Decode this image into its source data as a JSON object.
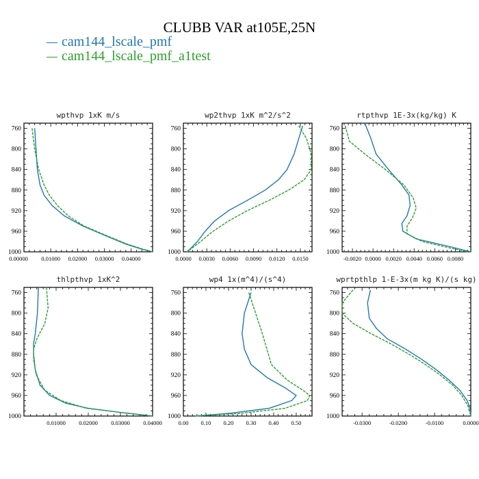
{
  "title": "CLUBB VAR at105E,25N",
  "colors": {
    "series1": "#1f77b4",
    "series2": "#2ca02c"
  },
  "legend": [
    {
      "name": "cam144_lscale_pmf",
      "color": "#1f77b4"
    },
    {
      "name": "cam144_lscale_pmf_a1test",
      "color": "#2ca02c"
    }
  ],
  "chart_data": [
    {
      "type": "line",
      "title": "wpthvp  1xK m/s",
      "xlim": [
        0,
        0.048
      ],
      "ylim": [
        1000,
        750
      ],
      "xticks": [
        0.01,
        0.02,
        0.03,
        0.04
      ],
      "xticklabels": [
        "0.01000",
        "0.02000",
        "0.03000",
        "0.04000"
      ],
      "xticks_labeled_origin": "0.00000",
      "yticks": [
        760,
        800,
        840,
        880,
        920,
        960,
        1000
      ],
      "yticklabels": [
        "760",
        "800",
        "840",
        "880",
        "920",
        "960",
        "1000"
      ],
      "series": [
        {
          "name": "cam144_lscale_pmf",
          "y": [
            760,
            800,
            840,
            870,
            890,
            910,
            930,
            950,
            970,
            985,
            995,
            1000
          ],
          "x": [
            0.004,
            0.0045,
            0.005,
            0.006,
            0.0075,
            0.0105,
            0.015,
            0.022,
            0.031,
            0.038,
            0.044,
            0.048
          ]
        },
        {
          "name": "cam144_lscale_pmf_a1test",
          "y": [
            760,
            800,
            840,
            870,
            890,
            910,
            930,
            950,
            970,
            985,
            995,
            1000
          ],
          "x": [
            0.003,
            0.004,
            0.0055,
            0.0075,
            0.0095,
            0.0125,
            0.0165,
            0.0225,
            0.0315,
            0.0385,
            0.0445,
            0.048
          ]
        }
      ]
    },
    {
      "type": "line",
      "title": "wp2thvp  1xK m^2/s^2",
      "xlim": [
        0,
        0.0165
      ],
      "ylim": [
        1000,
        750
      ],
      "xticks": [
        0,
        0.003,
        0.006,
        0.009,
        0.012,
        0.015
      ],
      "xticklabels": [
        "0.0000",
        "0.0030",
        "0.0060",
        "0.0090",
        "0.0120",
        "0.0150"
      ],
      "yticks": [
        760,
        800,
        840,
        880,
        920,
        960,
        1000
      ],
      "yticklabels": [
        "760",
        "800",
        "840",
        "880",
        "920",
        "960",
        "1000"
      ],
      "series": [
        {
          "name": "cam144_lscale_pmf",
          "y": [
            755,
            780,
            810,
            840,
            860,
            880,
            900,
            920,
            940,
            960,
            980,
            1000
          ],
          "x": [
            0.0153,
            0.0148,
            0.0142,
            0.0133,
            0.0122,
            0.0105,
            0.0082,
            0.0058,
            0.004,
            0.0028,
            0.0018,
            0.0005
          ]
        },
        {
          "name": "cam144_lscale_pmf_a1test",
          "y": [
            755,
            780,
            810,
            840,
            860,
            880,
            900,
            920,
            940,
            960,
            980,
            1000
          ],
          "x": [
            0.0148,
            0.0158,
            0.0164,
            0.0164,
            0.0155,
            0.0135,
            0.011,
            0.0082,
            0.0058,
            0.0038,
            0.0022,
            0.0005
          ]
        }
      ]
    },
    {
      "type": "line",
      "title": "rtpthvp  1E-3x(kg/kg) K",
      "xlim": [
        -0.003,
        0.0095
      ],
      "ylim": [
        1000,
        750
      ],
      "xticks": [
        -0.002,
        0,
        0.002,
        0.004,
        0.006,
        0.008
      ],
      "xticklabels": [
        "-0.0020",
        "0.0000",
        "0.0020",
        "0.0040",
        "0.0060",
        "0.0080"
      ],
      "yticks": [
        760,
        800,
        840,
        880,
        920,
        960,
        1000
      ],
      "yticklabels": [
        "760",
        "800",
        "840",
        "880",
        "920",
        "960",
        "1000"
      ],
      "series": [
        {
          "name": "cam144_lscale_pmf",
          "y": [
            750,
            780,
            810,
            840,
            870,
            890,
            910,
            930,
            945,
            960,
            975,
            990,
            1000
          ],
          "x": [
            -0.0008,
            -0.0002,
            0.0003,
            0.0015,
            0.0028,
            0.0035,
            0.0036,
            0.0033,
            0.0028,
            0.0029,
            0.0042,
            0.0075,
            0.0095
          ]
        },
        {
          "name": "cam144_lscale_pmf_a1test",
          "y": [
            755,
            785,
            810,
            840,
            870,
            895,
            915,
            935,
            950,
            965,
            980,
            995,
            1000
          ],
          "x": [
            -0.0027,
            -0.0023,
            -0.0008,
            0.0012,
            0.003,
            0.0039,
            0.0042,
            0.0038,
            0.0033,
            0.0033,
            0.0048,
            0.008,
            0.0092
          ]
        }
      ]
    },
    {
      "type": "line",
      "title": "thlpthvp  1xK^2",
      "xlim": [
        0,
        0.04
      ],
      "ylim": [
        1000,
        750
      ],
      "xticks": [
        0.01,
        0.02,
        0.03,
        0.04
      ],
      "xticklabels": [
        "0.01000",
        "0.02000",
        "0.03000",
        "0.04000"
      ],
      "yticks": [
        760,
        800,
        840,
        880,
        920,
        960,
        1000
      ],
      "yticklabels": [
        "760",
        "800",
        "840",
        "880",
        "920",
        "960",
        "1000"
      ],
      "series": [
        {
          "name": "cam144_lscale_pmf",
          "y": [
            750,
            800,
            840,
            860,
            880,
            910,
            940,
            960,
            975,
            985,
            993,
            1000
          ],
          "x": [
            0.0045,
            0.0042,
            0.0035,
            0.003,
            0.003,
            0.0035,
            0.005,
            0.008,
            0.013,
            0.02,
            0.03,
            0.04
          ]
        },
        {
          "name": "cam144_lscale_pmf_a1test",
          "y": [
            750,
            790,
            820,
            850,
            870,
            890,
            920,
            950,
            970,
            985,
            993,
            1000
          ],
          "x": [
            0.007,
            0.0075,
            0.0065,
            0.004,
            0.003,
            0.003,
            0.0038,
            0.0065,
            0.0115,
            0.0195,
            0.03,
            0.04
          ]
        }
      ]
    },
    {
      "type": "line",
      "title": "wp4  1x(m^4)/(s^4)",
      "xlim": [
        0,
        0.57
      ],
      "ylim": [
        1000,
        750
      ],
      "xticks": [
        0,
        0.1,
        0.2,
        0.3,
        0.4,
        0.5
      ],
      "xticklabels": [
        "0.00",
        "0.10",
        "0.20",
        "0.30",
        "0.40",
        "0.50"
      ],
      "yticks": [
        760,
        800,
        840,
        880,
        920,
        960,
        1000
      ],
      "yticklabels": [
        "760",
        "800",
        "840",
        "880",
        "920",
        "960",
        "1000"
      ],
      "series": [
        {
          "name": "cam144_lscale_pmf",
          "y": [
            760,
            800,
            840,
            870,
            900,
            925,
            945,
            960,
            970,
            985,
            995,
            1000
          ],
          "x": [
            0.3,
            0.27,
            0.26,
            0.27,
            0.3,
            0.37,
            0.45,
            0.5,
            0.48,
            0.38,
            0.2,
            0.05
          ]
        },
        {
          "name": "cam144_lscale_pmf_a1test",
          "y": [
            760,
            800,
            840,
            870,
            900,
            930,
            950,
            960,
            970,
            985,
            995,
            1000
          ],
          "x": [
            0.29,
            0.32,
            0.35,
            0.37,
            0.39,
            0.46,
            0.53,
            0.56,
            0.55,
            0.45,
            0.25,
            0.05
          ]
        }
      ]
    },
    {
      "type": "line",
      "title": "wprtpthlp  1-E-3x(m kg K)/(s kg)",
      "xlim": [
        -0.0355,
        0
      ],
      "ylim": [
        1000,
        750
      ],
      "xticks": [
        -0.03,
        -0.02,
        -0.01,
        0
      ],
      "xticklabels": [
        "-0.0300",
        "-0.0200",
        "-0.0100",
        "0.0000"
      ],
      "yticks": [
        760,
        800,
        840,
        880,
        920,
        960,
        1000
      ],
      "yticklabels": [
        "760",
        "800",
        "840",
        "880",
        "920",
        "960",
        "1000"
      ],
      "series": [
        {
          "name": "cam144_lscale_pmf",
          "y": [
            755,
            780,
            810,
            830,
            850,
            870,
            890,
            910,
            930,
            950,
            970,
            985,
            1000
          ],
          "x": [
            -0.0277,
            -0.0285,
            -0.028,
            -0.026,
            -0.023,
            -0.018,
            -0.0135,
            -0.0095,
            -0.006,
            -0.003,
            -0.001,
            -0.0002,
            0
          ]
        },
        {
          "name": "cam144_lscale_pmf_a1test",
          "y": [
            755,
            780,
            800,
            820,
            840,
            860,
            880,
            900,
            920,
            940,
            960,
            980,
            1000
          ],
          "x": [
            -0.0325,
            -0.0355,
            -0.0355,
            -0.0325,
            -0.0275,
            -0.022,
            -0.017,
            -0.0125,
            -0.0085,
            -0.005,
            -0.0025,
            -0.0008,
            0
          ]
        }
      ]
    }
  ]
}
